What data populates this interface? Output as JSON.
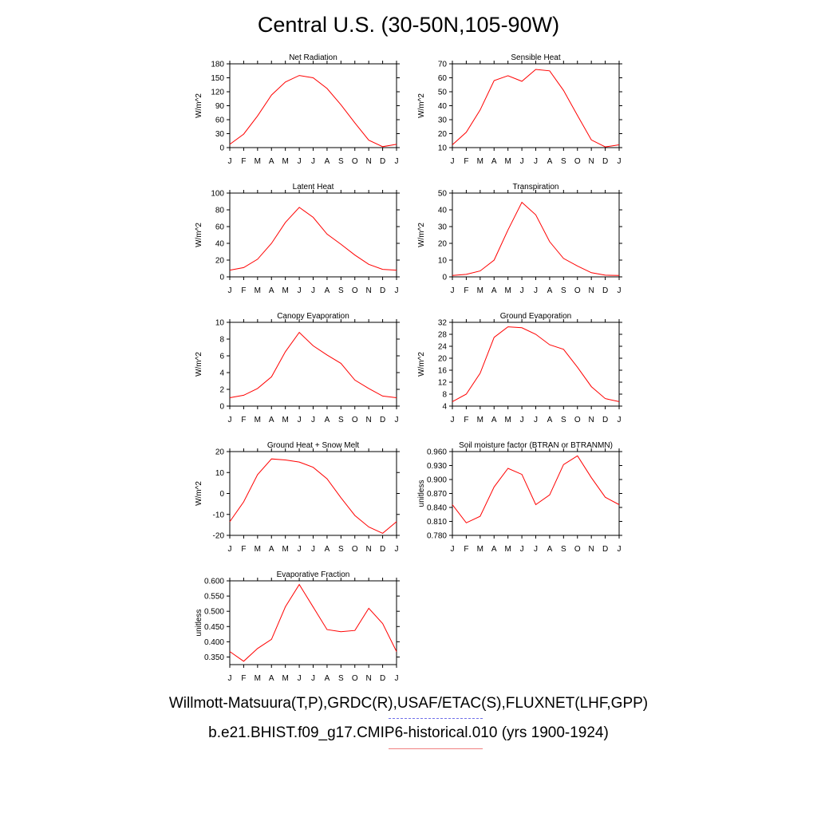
{
  "title": "Central U.S. (30-50N,105-90W)",
  "colors": {
    "series": "#ff0000",
    "obs_line": "#7070e8",
    "model_line": "#f08080"
  },
  "legend": {
    "obs": "Willmott-Matsuura(T,P),GRDC(R),USAF/ETAC(S),FLUXNET(LHF,GPP)",
    "model": "b.e21.BHIST.f09_g17.CMIP6-historical.010 (yrs 1900-1924)"
  },
  "chart_data": [
    {
      "type": "line",
      "title": "Net Radiation",
      "ylabel": "W/m^2",
      "categories": [
        "J",
        "F",
        "M",
        "A",
        "M",
        "J",
        "J",
        "A",
        "S",
        "O",
        "N",
        "D",
        "J"
      ],
      "ylim": [
        0,
        180
      ],
      "yticks": [
        "0",
        "30",
        "60",
        "90",
        "120",
        "150",
        "180"
      ],
      "values": [
        7,
        29,
        68,
        113,
        141,
        155,
        150,
        127,
        92,
        53,
        16,
        2,
        7
      ]
    },
    {
      "type": "line",
      "title": "Sensible Heat",
      "ylabel": "W/m^2",
      "categories": [
        "J",
        "F",
        "M",
        "A",
        "M",
        "J",
        "J",
        "A",
        "S",
        "O",
        "N",
        "D",
        "J"
      ],
      "ylim": [
        10,
        70
      ],
      "yticks": [
        "10",
        "20",
        "30",
        "40",
        "50",
        "60",
        "70"
      ],
      "values": [
        12,
        21,
        37,
        58,
        61.5,
        57.5,
        66,
        65,
        51,
        33,
        15.5,
        10.5,
        12
      ]
    },
    {
      "type": "line",
      "title": "Latent Heat",
      "ylabel": "W/m^2",
      "categories": [
        "J",
        "F",
        "M",
        "A",
        "M",
        "J",
        "J",
        "A",
        "S",
        "O",
        "N",
        "D",
        "J"
      ],
      "ylim": [
        0,
        100
      ],
      "yticks": [
        "0",
        "20",
        "40",
        "60",
        "80",
        "100"
      ],
      "values": [
        8,
        11,
        21,
        40,
        65,
        83,
        71,
        51,
        39,
        26,
        15,
        9,
        8
      ]
    },
    {
      "type": "line",
      "title": "Transpiration",
      "ylabel": "W/m^2",
      "categories": [
        "J",
        "F",
        "M",
        "A",
        "M",
        "J",
        "J",
        "A",
        "S",
        "O",
        "N",
        "D",
        "J"
      ],
      "ylim": [
        0,
        50
      ],
      "yticks": [
        "0",
        "10",
        "20",
        "30",
        "40",
        "50"
      ],
      "values": [
        0.8,
        1.5,
        3.5,
        10,
        28,
        44.5,
        37,
        21,
        11,
        6.5,
        2.5,
        1,
        0.8
      ]
    },
    {
      "type": "line",
      "title": "Canopy Evaporation",
      "ylabel": "W/m^2",
      "categories": [
        "J",
        "F",
        "M",
        "A",
        "M",
        "J",
        "J",
        "A",
        "S",
        "O",
        "N",
        "D",
        "J"
      ],
      "ylim": [
        0,
        10
      ],
      "yticks": [
        "0",
        "2",
        "4",
        "6",
        "8",
        "10"
      ],
      "values": [
        1,
        1.3,
        2.1,
        3.5,
        6.5,
        8.8,
        7.2,
        6.1,
        5.1,
        3.1,
        2.1,
        1.2,
        1
      ]
    },
    {
      "type": "line",
      "title": "Ground Evaporation",
      "ylabel": "W/m^2",
      "categories": [
        "J",
        "F",
        "M",
        "A",
        "M",
        "J",
        "J",
        "A",
        "S",
        "O",
        "N",
        "D",
        "J"
      ],
      "ylim": [
        4,
        32
      ],
      "yticks": [
        "4",
        "8",
        "12",
        "16",
        "20",
        "24",
        "28",
        "32"
      ],
      "values": [
        5.5,
        8,
        15,
        27,
        30.5,
        30.2,
        28,
        24.5,
        23,
        17,
        10.5,
        6.5,
        5.5
      ]
    },
    {
      "type": "line",
      "title": "Ground Heat + Snow Melt",
      "ylabel": "W/m^2",
      "categories": [
        "J",
        "F",
        "M",
        "A",
        "M",
        "J",
        "J",
        "A",
        "S",
        "O",
        "N",
        "D",
        "J"
      ],
      "ylim": [
        -20,
        20
      ],
      "yticks": [
        "-20",
        "-10",
        "0",
        "10",
        "20"
      ],
      "values": [
        -13.5,
        -4,
        9,
        16.5,
        16,
        15,
        12.5,
        7,
        -2,
        -10.5,
        -16,
        -19,
        -13.5
      ]
    },
    {
      "type": "line",
      "title": "Soil moisture factor (BTRAN or BTRANMN)",
      "ylabel": "unitless",
      "categories": [
        "J",
        "F",
        "M",
        "A",
        "M",
        "J",
        "J",
        "A",
        "S",
        "O",
        "N",
        "D",
        "J"
      ],
      "ylim": [
        0.78,
        0.96
      ],
      "yticks": [
        "0.780",
        "0.810",
        "0.840",
        "0.870",
        "0.900",
        "0.930",
        "0.960"
      ],
      "values": [
        0.846,
        0.807,
        0.821,
        0.884,
        0.924,
        0.911,
        0.846,
        0.867,
        0.932,
        0.951,
        0.904,
        0.862,
        0.846
      ]
    },
    {
      "type": "line",
      "title": "Evaporative Fraction",
      "ylabel": "unitless",
      "categories": [
        "J",
        "F",
        "M",
        "A",
        "M",
        "J",
        "J",
        "A",
        "S",
        "O",
        "N",
        "D",
        "J"
      ],
      "ylim": [
        0.325,
        0.6
      ],
      "yticks": [
        "0.350",
        "0.400",
        "0.450",
        "0.500",
        "0.550",
        "0.600"
      ],
      "values": [
        0.368,
        0.336,
        0.378,
        0.408,
        0.515,
        0.588,
        0.514,
        0.44,
        0.433,
        0.437,
        0.51,
        0.46,
        0.368
      ]
    }
  ]
}
